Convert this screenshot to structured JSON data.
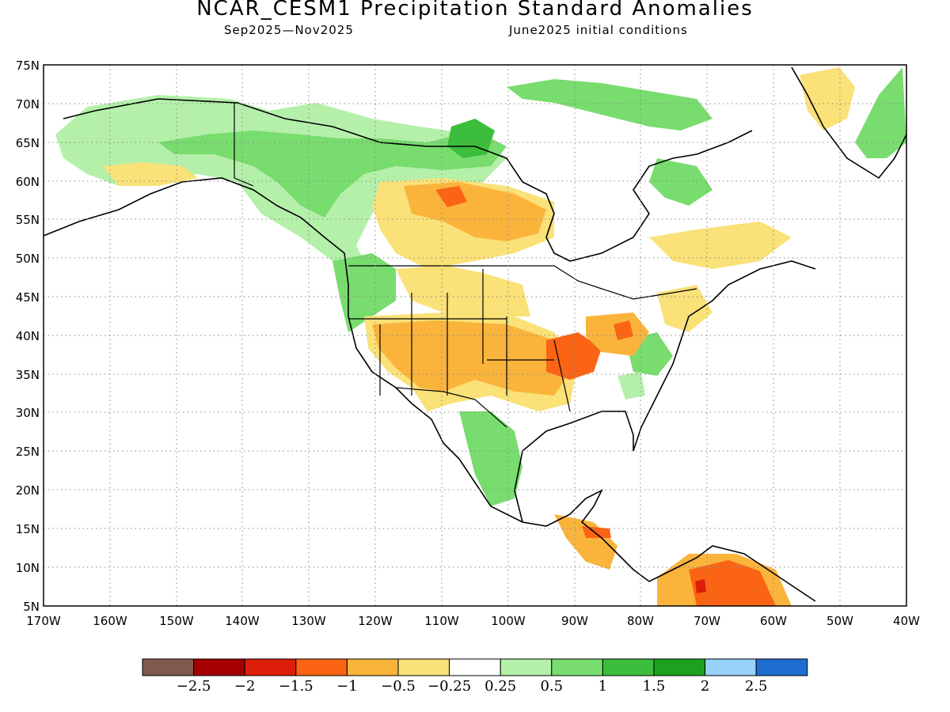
{
  "title": "NCAR_CESM1 Precipitation Standard Anomalies",
  "subtitle_period": "Sep2025—Nov2025",
  "subtitle_ic": "June2025 initial conditions",
  "map": {
    "lat_labels": [
      "75N",
      "70N",
      "65N",
      "60N",
      "55N",
      "50N",
      "45N",
      "40N",
      "35N",
      "30N",
      "25N",
      "20N",
      "15N",
      "10N",
      "5N"
    ],
    "lon_labels": [
      "170W",
      "160W",
      "150W",
      "140W",
      "130W",
      "120W",
      "110W",
      "100W",
      "90W",
      "80W",
      "70W",
      "60W",
      "50W",
      "40W"
    ],
    "gridlines": "dotted"
  },
  "colorbar": {
    "colors": [
      "#7f5a4c",
      "#a40000",
      "#dc1e0a",
      "#fa6414",
      "#fab43c",
      "#fae178",
      "#ffffff",
      "#b4f0aa",
      "#78dc6e",
      "#3cbe3c",
      "#1ea01e",
      "#96d2fa",
      "#1e6ed2"
    ],
    "labels": [
      "−2.5",
      "−2",
      "−1.5",
      "−1",
      "−0.5",
      "−0.25",
      "0.25",
      "0.5",
      "1",
      "1.5",
      "2",
      "2.5"
    ]
  },
  "colors": {
    "green_light": "#b4f0aa",
    "green_mid": "#78dc6e",
    "green_dark": "#3cbe3c",
    "orange_light": "#fae178",
    "orange_mid": "#fab43c",
    "orange_dark": "#fa6414",
    "red": "#dc1e0a"
  }
}
